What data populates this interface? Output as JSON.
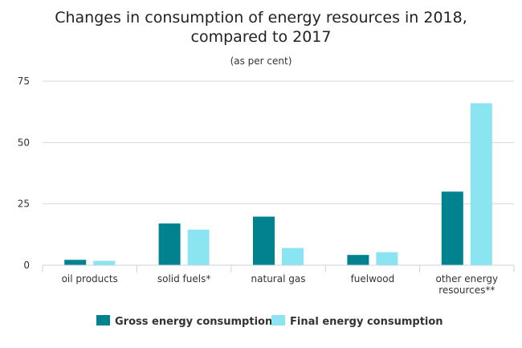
{
  "chart_data": {
    "type": "bar",
    "title_lines": [
      "Changes in consumption of energy resources in 2018,",
      "compared to 2017"
    ],
    "subtitle": "(as per cent)",
    "categories": [
      [
        "oil products"
      ],
      [
        "solid fuels*"
      ],
      [
        "natural gas"
      ],
      [
        "fuelwood"
      ],
      [
        "other energy",
        "resources**"
      ]
    ],
    "series": [
      {
        "name": "Gross energy consumption",
        "color": "#00838f",
        "values": [
          2.2,
          17,
          19.8,
          4.2,
          30
        ]
      },
      {
        "name": "Final energy consumption",
        "color": "#8ae4f2",
        "values": [
          1.8,
          14.5,
          7,
          5.3,
          66
        ]
      }
    ],
    "ylim": [
      0,
      75
    ],
    "yticks": [
      0,
      25,
      50,
      75
    ],
    "grid": true,
    "legend_position": "bottom-center"
  }
}
